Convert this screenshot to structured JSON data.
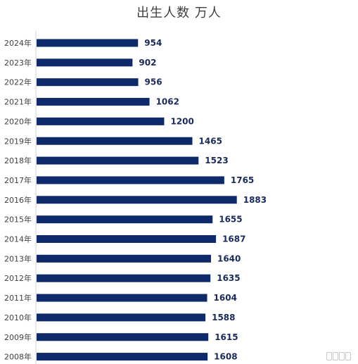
{
  "chart_data": {
    "type": "bar",
    "orientation": "horizontal",
    "title": "出生人数 万人",
    "categories": [
      "2024年",
      "2023年",
      "2022年",
      "2021年",
      "2020年",
      "2019年",
      "2018年",
      "2017年",
      "2016年",
      "2015年",
      "2014年",
      "2013年",
      "2012年",
      "2011年",
      "2010年",
      "2009年",
      "2008年"
    ],
    "values": [
      954,
      902,
      956,
      1062,
      1200,
      1465,
      1523,
      1765,
      1883,
      1655,
      1687,
      1640,
      1635,
      1604,
      1588,
      1615,
      1608
    ],
    "xlim": [
      0,
      2070
    ],
    "bar_color": "#0f2a6b",
    "grid": false,
    "legend": "none"
  }
}
